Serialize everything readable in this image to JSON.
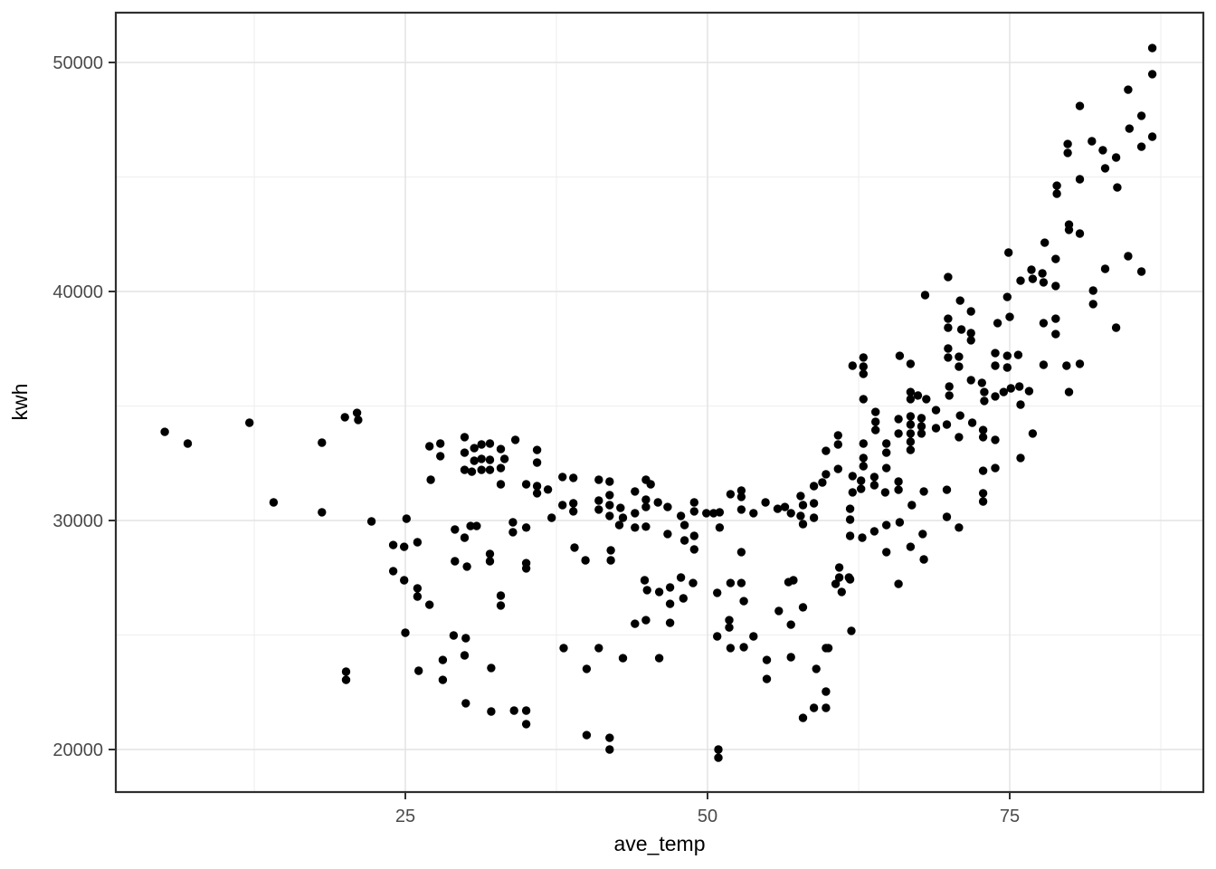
{
  "chart_data": {
    "type": "scatter",
    "title": "",
    "xlabel": "ave_temp",
    "ylabel": "kwh",
    "x_ticks": [
      25,
      50,
      75
    ],
    "x_tick_labels": [
      "25",
      "50",
      "75"
    ],
    "x_minor_ticks": [
      12.5,
      37.5,
      62.5,
      87.5
    ],
    "y_ticks": [
      20000,
      30000,
      40000,
      50000
    ],
    "y_tick_labels": [
      "20000",
      "30000",
      "40000",
      "50000"
    ],
    "y_minor_ticks": [
      25000,
      35000,
      45000
    ],
    "xlim": [
      1.0,
      91.0
    ],
    "ylim": [
      18140,
      52175
    ],
    "grid": "major+minor",
    "legend": "none",
    "n_points": 341,
    "points": [
      [
        5.1,
        33870
      ],
      [
        7.0,
        33360
      ],
      [
        12.1,
        34270
      ],
      [
        20.0,
        34510
      ],
      [
        21.0,
        34700
      ],
      [
        21.1,
        34390
      ],
      [
        18.1,
        33400
      ],
      [
        14.1,
        30790
      ],
      [
        18.1,
        30360
      ],
      [
        22.2,
        29960
      ],
      [
        25.1,
        30080
      ],
      [
        27.0,
        33240
      ],
      [
        27.9,
        33360
      ],
      [
        27.9,
        32810
      ],
      [
        29.9,
        33640
      ],
      [
        29.9,
        32960
      ],
      [
        29.9,
        32210
      ],
      [
        27.1,
        31780
      ],
      [
        24.0,
        28930
      ],
      [
        24.9,
        28850
      ],
      [
        24.9,
        27390
      ],
      [
        26.0,
        29050
      ],
      [
        29.1,
        29610
      ],
      [
        29.9,
        29250
      ],
      [
        29.1,
        28220
      ],
      [
        30.1,
        27990
      ],
      [
        24.0,
        27790
      ],
      [
        26.0,
        27040
      ],
      [
        26.0,
        26680
      ],
      [
        27.0,
        26320
      ],
      [
        25.0,
        25100
      ],
      [
        29.0,
        24980
      ],
      [
        30.0,
        24860
      ],
      [
        28.1,
        23910
      ],
      [
        29.9,
        24110
      ],
      [
        26.1,
        23440
      ],
      [
        28.1,
        23040
      ],
      [
        20.1,
        23400
      ],
      [
        20.1,
        23040
      ],
      [
        30.0,
        22020
      ],
      [
        30.7,
        33160
      ],
      [
        30.7,
        32610
      ],
      [
        30.5,
        32130
      ],
      [
        31.3,
        33320
      ],
      [
        32.0,
        33360
      ],
      [
        31.3,
        32690
      ],
      [
        32.0,
        32650
      ],
      [
        32.9,
        33120
      ],
      [
        33.2,
        32690
      ],
      [
        32.9,
        32290
      ],
      [
        32.0,
        32210
      ],
      [
        31.3,
        32210
      ],
      [
        34.1,
        33520
      ],
      [
        35.9,
        33080
      ],
      [
        35.9,
        32530
      ],
      [
        32.9,
        31580
      ],
      [
        35.0,
        31580
      ],
      [
        35.9,
        31500
      ],
      [
        35.9,
        31190
      ],
      [
        36.8,
        31350
      ],
      [
        37.1,
        30120
      ],
      [
        38.0,
        31900
      ],
      [
        38.0,
        30670
      ],
      [
        38.9,
        31860
      ],
      [
        38.9,
        30750
      ],
      [
        38.9,
        30400
      ],
      [
        41.0,
        31780
      ],
      [
        41.0,
        30870
      ],
      [
        41.0,
        30480
      ],
      [
        41.9,
        31700
      ],
      [
        41.9,
        31110
      ],
      [
        41.9,
        30670
      ],
      [
        41.9,
        30200
      ],
      [
        42.8,
        30550
      ],
      [
        43.0,
        30120
      ],
      [
        42.7,
        29800
      ],
      [
        44.0,
        31270
      ],
      [
        44.0,
        30320
      ],
      [
        44.0,
        29690
      ],
      [
        44.9,
        31780
      ],
      [
        45.3,
        31580
      ],
      [
        44.9,
        30910
      ],
      [
        44.9,
        30590
      ],
      [
        44.9,
        29730
      ],
      [
        45.9,
        30790
      ],
      [
        46.7,
        30590
      ],
      [
        46.7,
        29410
      ],
      [
        47.8,
        30200
      ],
      [
        48.1,
        29800
      ],
      [
        48.1,
        29130
      ],
      [
        48.9,
        30790
      ],
      [
        48.9,
        30400
      ],
      [
        48.9,
        29330
      ],
      [
        48.9,
        28740
      ],
      [
        49.9,
        30320
      ],
      [
        50.5,
        30320
      ],
      [
        51.0,
        30360
      ],
      [
        51.0,
        29690
      ],
      [
        51.9,
        31150
      ],
      [
        52.8,
        31310
      ],
      [
        52.8,
        31030
      ],
      [
        52.8,
        30480
      ],
      [
        52.8,
        28620
      ],
      [
        53.8,
        30320
      ],
      [
        54.8,
        30790
      ],
      [
        55.8,
        30510
      ],
      [
        56.4,
        30590
      ],
      [
        56.9,
        30320
      ],
      [
        57.7,
        31070
      ],
      [
        57.9,
        30670
      ],
      [
        57.7,
        30200
      ],
      [
        57.9,
        29840
      ],
      [
        58.8,
        31500
      ],
      [
        59.5,
        31660
      ],
      [
        58.8,
        30750
      ],
      [
        58.8,
        30120
      ],
      [
        59.8,
        33040
      ],
      [
        60.8,
        33720
      ],
      [
        60.8,
        33320
      ],
      [
        59.8,
        32020
      ],
      [
        60.8,
        32250
      ],
      [
        30.4,
        29760
      ],
      [
        30.9,
        29760
      ],
      [
        33.9,
        29920
      ],
      [
        33.9,
        29490
      ],
      [
        35.0,
        29690
      ],
      [
        32.0,
        28540
      ],
      [
        32.0,
        28220
      ],
      [
        35.0,
        28140
      ],
      [
        35.0,
        27910
      ],
      [
        39.0,
        28820
      ],
      [
        39.9,
        28260
      ],
      [
        42.0,
        28700
      ],
      [
        42.0,
        28260
      ],
      [
        32.9,
        26720
      ],
      [
        32.9,
        26290
      ],
      [
        44.8,
        27390
      ],
      [
        45.0,
        26960
      ],
      [
        46.0,
        26880
      ],
      [
        46.9,
        27080
      ],
      [
        47.8,
        27510
      ],
      [
        48.8,
        27270
      ],
      [
        32.1,
        23560
      ],
      [
        32.1,
        21660
      ],
      [
        34.0,
        21700
      ],
      [
        35.0,
        21700
      ],
      [
        35.0,
        21110
      ],
      [
        40.0,
        20630
      ],
      [
        41.9,
        20510
      ],
      [
        41.9,
        20000
      ],
      [
        38.1,
        24430
      ],
      [
        41.0,
        24430
      ],
      [
        40.0,
        23520
      ],
      [
        43.0,
        23990
      ],
      [
        46.0,
        23990
      ],
      [
        44.0,
        25490
      ],
      [
        44.9,
        25650
      ],
      [
        46.9,
        26360
      ],
      [
        46.9,
        25530
      ],
      [
        48.0,
        26600
      ],
      [
        50.8,
        26840
      ],
      [
        50.8,
        24940
      ],
      [
        51.8,
        25650
      ],
      [
        51.8,
        25330
      ],
      [
        52.8,
        27270
      ],
      [
        51.9,
        27270
      ],
      [
        53.0,
        26480
      ],
      [
        51.9,
        24430
      ],
      [
        53.0,
        24470
      ],
      [
        54.9,
        23910
      ],
      [
        54.9,
        23080
      ],
      [
        56.9,
        24030
      ],
      [
        59.0,
        23520
      ],
      [
        59.8,
        24430
      ],
      [
        57.9,
        21380
      ],
      [
        58.8,
        21820
      ],
      [
        59.8,
        22530
      ],
      [
        59.8,
        21820
      ],
      [
        50.9,
        20000
      ],
      [
        50.9,
        19640
      ],
      [
        55.9,
        26050
      ],
      [
        56.7,
        27310
      ],
      [
        57.1,
        27390
      ],
      [
        57.9,
        26210
      ],
      [
        56.9,
        25450
      ],
      [
        53.8,
        24940
      ],
      [
        62.0,
        36760
      ],
      [
        62.9,
        37120
      ],
      [
        62.9,
        36720
      ],
      [
        62.9,
        36400
      ],
      [
        65.9,
        37190
      ],
      [
        66.8,
        36840
      ],
      [
        69.9,
        37510
      ],
      [
        69.9,
        37120
      ],
      [
        70.8,
        37150
      ],
      [
        70.8,
        36720
      ],
      [
        73.8,
        37310
      ],
      [
        73.8,
        36760
      ],
      [
        74.8,
        37190
      ],
      [
        74.8,
        36680
      ],
      [
        75.7,
        37230
      ],
      [
        77.8,
        36800
      ],
      [
        79.7,
        36760
      ],
      [
        80.8,
        36840
      ],
      [
        71.8,
        36130
      ],
      [
        72.7,
        36010
      ],
      [
        72.9,
        35610
      ],
      [
        72.9,
        35220
      ],
      [
        70.0,
        35850
      ],
      [
        70.0,
        35460
      ],
      [
        62.9,
        35300
      ],
      [
        66.8,
        35610
      ],
      [
        66.8,
        35300
      ],
      [
        67.4,
        35460
      ],
      [
        68.1,
        35300
      ],
      [
        73.8,
        35420
      ],
      [
        74.5,
        35610
      ],
      [
        75.1,
        35770
      ],
      [
        75.8,
        35850
      ],
      [
        76.6,
        35650
      ],
      [
        79.9,
        35610
      ],
      [
        75.9,
        35060
      ],
      [
        63.9,
        34740
      ],
      [
        63.9,
        34310
      ],
      [
        63.9,
        33950
      ],
      [
        65.8,
        34430
      ],
      [
        65.8,
        33800
      ],
      [
        66.8,
        34550
      ],
      [
        66.8,
        34190
      ],
      [
        66.8,
        33800
      ],
      [
        67.7,
        34470
      ],
      [
        67.7,
        34110
      ],
      [
        67.7,
        33800
      ],
      [
        66.8,
        33440
      ],
      [
        66.8,
        33080
      ],
      [
        68.9,
        34820
      ],
      [
        68.9,
        34030
      ],
      [
        69.8,
        34190
      ],
      [
        70.9,
        34580
      ],
      [
        70.8,
        33640
      ],
      [
        71.9,
        34270
      ],
      [
        72.8,
        33950
      ],
      [
        72.8,
        33640
      ],
      [
        73.8,
        33520
      ],
      [
        76.9,
        33800
      ],
      [
        62.9,
        33360
      ],
      [
        62.9,
        32730
      ],
      [
        62.9,
        32370
      ],
      [
        64.8,
        33360
      ],
      [
        64.8,
        32960
      ],
      [
        62.0,
        31940
      ],
      [
        62.0,
        31230
      ],
      [
        62.7,
        31740
      ],
      [
        62.7,
        31380
      ],
      [
        63.8,
        31900
      ],
      [
        63.8,
        31540
      ],
      [
        64.8,
        32290
      ],
      [
        65.8,
        31700
      ],
      [
        65.8,
        31340
      ],
      [
        64.7,
        31230
      ],
      [
        67.9,
        31270
      ],
      [
        69.8,
        31340
      ],
      [
        72.8,
        32170
      ],
      [
        73.8,
        32290
      ],
      [
        72.8,
        31190
      ],
      [
        72.8,
        30830
      ],
      [
        75.9,
        32730
      ],
      [
        61.8,
        30510
      ],
      [
        61.8,
        30040
      ],
      [
        66.9,
        30670
      ],
      [
        69.8,
        30160
      ],
      [
        70.8,
        29690
      ],
      [
        61.8,
        29330
      ],
      [
        62.8,
        29250
      ],
      [
        63.8,
        29530
      ],
      [
        64.8,
        29800
      ],
      [
        64.8,
        28620
      ],
      [
        65.9,
        29920
      ],
      [
        66.8,
        28850
      ],
      [
        67.8,
        29410
      ],
      [
        67.9,
        28300
      ],
      [
        60.9,
        27950
      ],
      [
        60.9,
        27510
      ],
      [
        61.7,
        27510
      ],
      [
        60.6,
        27230
      ],
      [
        61.1,
        26880
      ],
      [
        61.8,
        27430
      ],
      [
        65.8,
        27230
      ],
      [
        61.9,
        25180
      ],
      [
        60.0,
        24430
      ],
      [
        84.8,
        48810
      ],
      [
        80.8,
        48100
      ],
      [
        85.9,
        47670
      ],
      [
        84.9,
        47110
      ],
      [
        86.8,
        46760
      ],
      [
        85.9,
        46320
      ],
      [
        81.8,
        46560
      ],
      [
        79.8,
        46440
      ],
      [
        79.8,
        46050
      ],
      [
        82.7,
        46170
      ],
      [
        83.8,
        45850
      ],
      [
        82.9,
        45380
      ],
      [
        80.8,
        44900
      ],
      [
        83.9,
        44540
      ],
      [
        78.9,
        44620
      ],
      [
        78.9,
        44270
      ],
      [
        79.9,
        42920
      ],
      [
        79.9,
        42690
      ],
      [
        80.8,
        42530
      ],
      [
        77.9,
        42130
      ],
      [
        78.8,
        41420
      ],
      [
        74.9,
        41700
      ],
      [
        84.8,
        41540
      ],
      [
        82.9,
        40990
      ],
      [
        85.9,
        40870
      ],
      [
        69.9,
        40630
      ],
      [
        68.0,
        39840
      ],
      [
        70.9,
        39600
      ],
      [
        71.8,
        39130
      ],
      [
        69.9,
        38810
      ],
      [
        69.9,
        38420
      ],
      [
        71.0,
        38340
      ],
      [
        71.8,
        38180
      ],
      [
        71.8,
        37870
      ],
      [
        74.0,
        38620
      ],
      [
        74.8,
        39760
      ],
      [
        75.0,
        38890
      ],
      [
        75.9,
        40470
      ],
      [
        76.8,
        40950
      ],
      [
        76.9,
        40550
      ],
      [
        77.7,
        40790
      ],
      [
        77.8,
        40400
      ],
      [
        78.8,
        40240
      ],
      [
        77.8,
        38620
      ],
      [
        78.8,
        38810
      ],
      [
        78.8,
        38140
      ],
      [
        81.9,
        40040
      ],
      [
        81.9,
        39450
      ],
      [
        83.8,
        38420
      ],
      [
        86.8,
        50630
      ],
      [
        86.8,
        49490
      ]
    ]
  },
  "style": {
    "background": "#ffffff",
    "panel_background": "#ffffff",
    "panel_border": "#2f2f2f",
    "grid_major": "#e4e4e4",
    "grid_minor": "#eeeeee",
    "point_color": "#000000",
    "tick_color": "#333333",
    "tick_label_color": "#4a4a4a",
    "axis_title_color": "#000000"
  }
}
